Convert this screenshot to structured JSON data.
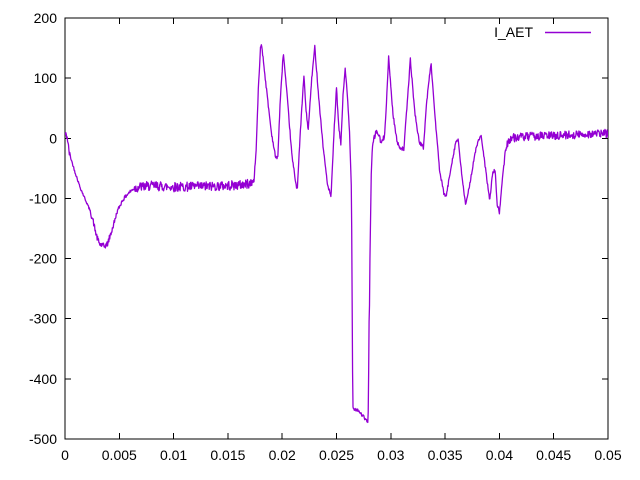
{
  "window": {
    "kind": "gnuplot-plot-window",
    "background": "#ffffff"
  },
  "colors": {
    "line": "#9400d3",
    "axis": "#000000",
    "text": "#000000",
    "background": "#ffffff"
  },
  "chart_data": {
    "type": "line",
    "title": "",
    "xlabel": "",
    "ylabel": "",
    "xlim": [
      0,
      0.05
    ],
    "ylim": [
      -500,
      200
    ],
    "xticks": [
      0,
      0.005,
      0.01,
      0.015,
      0.02,
      0.025,
      0.03,
      0.035,
      0.04,
      0.045,
      0.05
    ],
    "xtick_labels": [
      "0",
      "0.005",
      "0.01",
      "0.015",
      "0.02",
      "0.025",
      "0.03",
      "0.035",
      "0.04",
      "0.045",
      "0.05"
    ],
    "yticks": [
      200,
      100,
      0,
      -100,
      -200,
      -300,
      -400,
      -500
    ],
    "ytick_labels": [
      "200",
      "100",
      "0",
      "-100",
      "-200",
      "-300",
      "-400",
      "-500"
    ],
    "grid": false,
    "legend_position": "top-right",
    "noise_seed": 42,
    "sample_step": 4e-05,
    "series": [
      {
        "name": "I_AET",
        "color": "#9400d3",
        "anchors": [
          [
            0,
            8
          ],
          [
            0.0002,
            2
          ],
          [
            0.0004,
            -25
          ],
          [
            0.0009,
            -55
          ],
          [
            0.0014,
            -82
          ],
          [
            0.0019,
            -103
          ],
          [
            0.0023,
            -120
          ],
          [
            0.0026,
            -138
          ],
          [
            0.0028,
            -155
          ],
          [
            0.003,
            -168
          ],
          [
            0.0032,
            -176
          ],
          [
            0.0036,
            -180
          ],
          [
            0.0039,
            -176
          ],
          [
            0.0042,
            -160
          ],
          [
            0.0045,
            -142
          ],
          [
            0.0048,
            -122
          ],
          [
            0.0053,
            -103
          ],
          [
            0.0058,
            -92
          ],
          [
            0.0063,
            -84
          ],
          [
            0.0068,
            -81
          ],
          [
            0.008,
            -79
          ],
          [
            0.01,
            -81
          ],
          [
            0.013,
            -80
          ],
          [
            0.016,
            -78
          ],
          [
            0.0171,
            -75
          ],
          [
            0.0174,
            -70
          ],
          [
            0.0176,
            -20
          ],
          [
            0.0178,
            80
          ],
          [
            0.018,
            150
          ],
          [
            0.0181,
            157
          ],
          [
            0.0185,
            90
          ],
          [
            0.019,
            10
          ],
          [
            0.0194,
            -33
          ],
          [
            0.0196,
            -30
          ],
          [
            0.0198,
            55
          ],
          [
            0.0201,
            143
          ],
          [
            0.0205,
            60
          ],
          [
            0.0209,
            -30
          ],
          [
            0.0213,
            -80
          ],
          [
            0.0214,
            -81
          ],
          [
            0.0217,
            20
          ],
          [
            0.022,
            104
          ],
          [
            0.0222,
            45
          ],
          [
            0.0224,
            14
          ],
          [
            0.0227,
            95
          ],
          [
            0.023,
            152
          ],
          [
            0.0234,
            60
          ],
          [
            0.0238,
            -20
          ],
          [
            0.0242,
            -80
          ],
          [
            0.0245,
            -97
          ],
          [
            0.0248,
            20
          ],
          [
            0.025,
            84
          ],
          [
            0.0252,
            20
          ],
          [
            0.0254,
            -10
          ],
          [
            0.0256,
            70
          ],
          [
            0.0258,
            117
          ],
          [
            0.026,
            70
          ],
          [
            0.0262,
            10
          ],
          [
            0.02638,
            -90
          ],
          [
            0.02645,
            -300
          ],
          [
            0.0265,
            -448
          ],
          [
            0.0267,
            -450
          ],
          [
            0.027,
            -452
          ],
          [
            0.0272,
            -457
          ],
          [
            0.0274,
            -461
          ],
          [
            0.0276,
            -466
          ],
          [
            0.0278,
            -471
          ],
          [
            0.02785,
            -468
          ],
          [
            0.0279,
            -472
          ],
          [
            0.02795,
            -430
          ],
          [
            0.02798,
            -310
          ],
          [
            0.02803,
            -297
          ],
          [
            0.02808,
            -200
          ],
          [
            0.0282,
            -60
          ],
          [
            0.0283,
            -15
          ],
          [
            0.0285,
            3
          ],
          [
            0.0287,
            12
          ],
          [
            0.0289,
            5
          ],
          [
            0.0291,
            -8
          ],
          [
            0.0293,
            -2
          ],
          [
            0.0294,
            2
          ],
          [
            0.0296,
            60
          ],
          [
            0.0298,
            134
          ],
          [
            0.0302,
            40
          ],
          [
            0.0306,
            -8
          ],
          [
            0.0309,
            -16
          ],
          [
            0.0312,
            -18
          ],
          [
            0.0315,
            55
          ],
          [
            0.0318,
            131
          ],
          [
            0.0322,
            45
          ],
          [
            0.0326,
            -5
          ],
          [
            0.033,
            -16
          ],
          [
            0.0333,
            60
          ],
          [
            0.0337,
            126
          ],
          [
            0.0341,
            30
          ],
          [
            0.0345,
            -55
          ],
          [
            0.0349,
            -93
          ],
          [
            0.0351,
            -97
          ],
          [
            0.0356,
            -42
          ],
          [
            0.036,
            -5
          ],
          [
            0.0362,
            -3
          ],
          [
            0.0365,
            -55
          ],
          [
            0.0369,
            -113
          ],
          [
            0.0374,
            -62
          ],
          [
            0.0379,
            -12
          ],
          [
            0.0383,
            5
          ],
          [
            0.0387,
            -48
          ],
          [
            0.0391,
            -103
          ],
          [
            0.0394,
            -56
          ],
          [
            0.0396,
            -53
          ],
          [
            0.0398,
            -110
          ],
          [
            0.04,
            -125
          ],
          [
            0.0403,
            -62
          ],
          [
            0.0406,
            -15
          ],
          [
            0.0409,
            -2
          ],
          [
            0.0413,
            1
          ],
          [
            0.042,
            2
          ],
          [
            0.044,
            4
          ],
          [
            0.046,
            5
          ],
          [
            0.048,
            7
          ],
          [
            0.05,
            8
          ]
        ],
        "noise_segments": [
          [
            0,
            0.0005,
            5
          ],
          [
            0.0005,
            0.0024,
            2
          ],
          [
            0.0024,
            0.0046,
            5
          ],
          [
            0.0046,
            0.0064,
            3
          ],
          [
            0.0064,
            0.0173,
            8
          ],
          [
            0.0173,
            0.0264,
            3
          ],
          [
            0.0265,
            0.0279,
            3
          ],
          [
            0.0283,
            0.0296,
            5
          ],
          [
            0.0296,
            0.0355,
            3
          ],
          [
            0.0355,
            0.0404,
            3
          ],
          [
            0.0404,
            0.05,
            7
          ]
        ]
      }
    ]
  }
}
